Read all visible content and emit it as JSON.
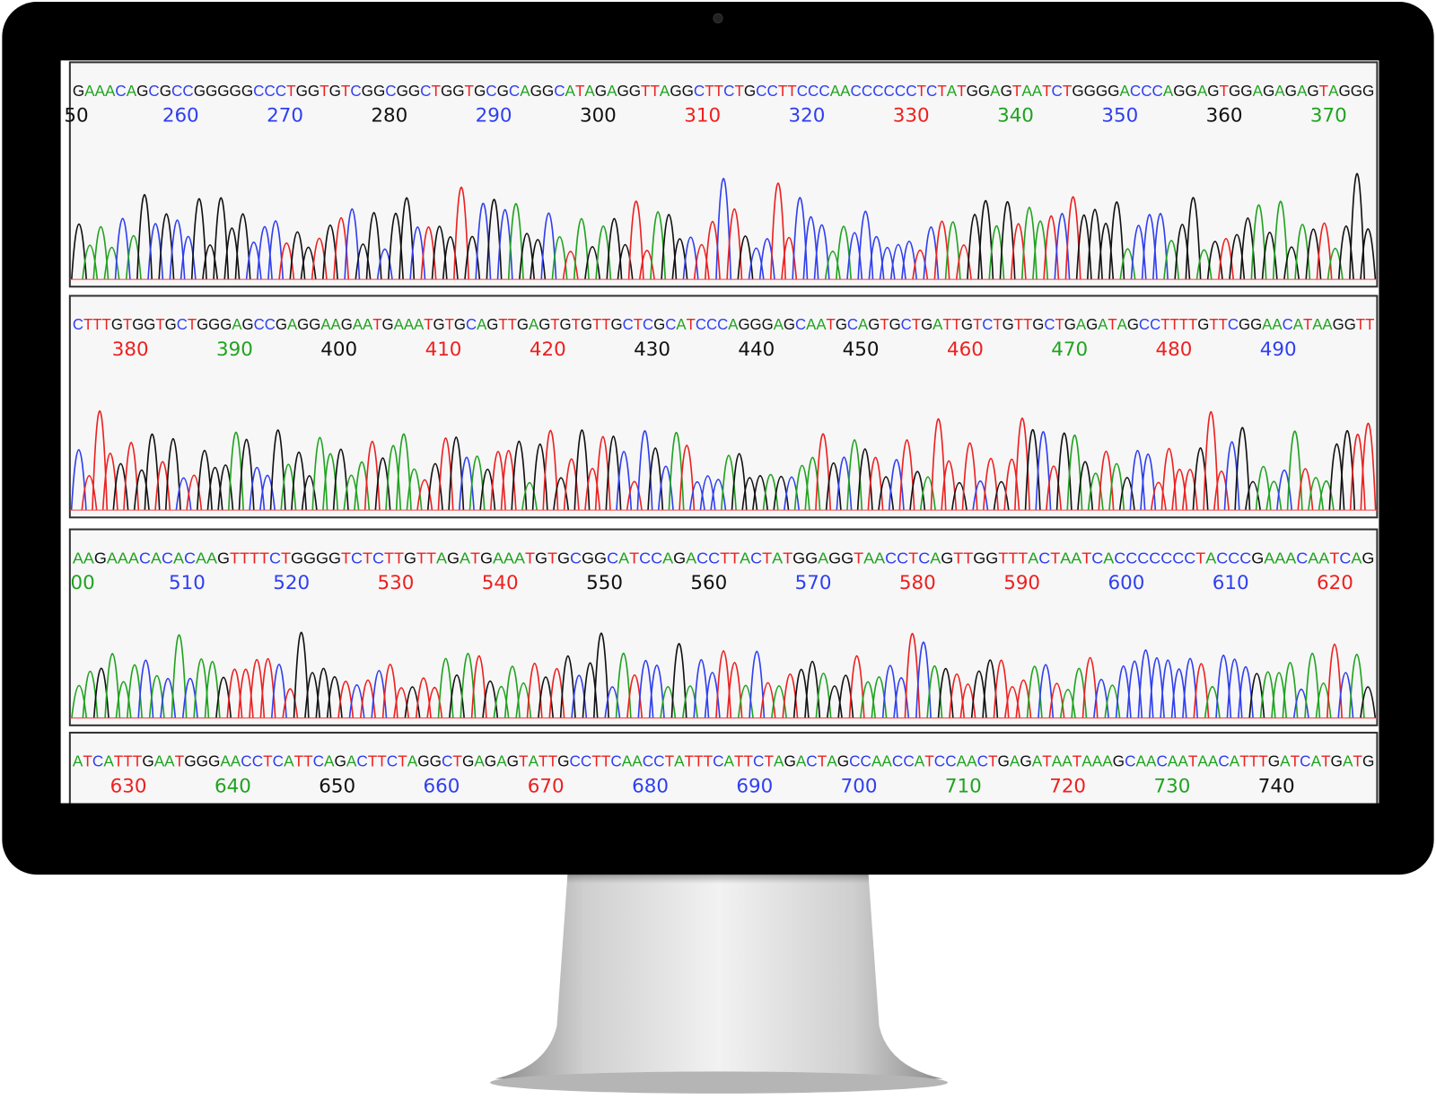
{
  "base_colors": {
    "A": "#1fa31f",
    "C": "#2f3ff0",
    "G": "#111111",
    "T": "#ee2020"
  },
  "panels": [
    {
      "sequence": "GAAACAGCGCCGGGGGCCCTGGTGTCGGCGGCTGGTGCGCAGGCATAGAGGTTAGGCTTCTGCCTTCCCAACCCCCCTCTATGGAGTAATCTGGGGACCCAGGAGTGGAGAGAGTAGGG",
      "positions": [
        "50",
        "260",
        "270",
        "280",
        "290",
        "300",
        "310",
        "320",
        "330",
        "340",
        "350",
        "360",
        "370"
      ],
      "position_colors": [
        "#111111",
        "#2f3ff0",
        "#2f3ff0",
        "#111111",
        "#2f3ff0",
        "#111111",
        "#ee2020",
        "#2f3ff0",
        "#ee2020",
        "#1fa31f",
        "#2f3ff0",
        "#111111",
        "#1fa31f"
      ]
    },
    {
      "sequence": "CTTTGTGGTGCTGGGAGCCGAGGAAGAATGAAATGTGCAGTTGAGTGTGTTGCTCGCATCCCAGGGAGCAATGCAGTGCTGATTGTCTGTTGCTGAGATAGCCTTTTGTTCGGAACATAAGGTT",
      "positions": [
        "380",
        "390",
        "400",
        "410",
        "420",
        "430",
        "440",
        "450",
        "460",
        "470",
        "480",
        "490"
      ],
      "position_colors": [
        "#ee2020",
        "#1fa31f",
        "#111111",
        "#ee2020",
        "#ee2020",
        "#111111",
        "#111111",
        "#111111",
        "#ee2020",
        "#1fa31f",
        "#ee2020",
        "#2f3ff0"
      ]
    },
    {
      "sequence": "AAGAAACACACAAGTTTTCTGGGGTCTCTTGTTAGATGAAATGTGCGGCATCCAGACCTTACTATGGAGGTAACCTCAGTTGGTTTACTAATCACCCCCCCTACCCGAAACAATCAG",
      "positions": [
        "00",
        "510",
        "520",
        "530",
        "540",
        "550",
        "560",
        "570",
        "580",
        "590",
        "600",
        "610",
        "620"
      ],
      "position_colors": [
        "#1fa31f",
        "#2f3ff0",
        "#2f3ff0",
        "#ee2020",
        "#ee2020",
        "#111111",
        "#111111",
        "#2f3ff0",
        "#ee2020",
        "#ee2020",
        "#2f3ff0",
        "#2f3ff0",
        "#ee2020"
      ]
    },
    {
      "sequence": "ATCATTTGAATGGGAACCTCATTCAGACTTCTAGGCTGAGAGTATTGCCTTCAACCTATTTCATTCTAGACTAGCCAACCATCCAACTGAGATAATAAAGCAACAATAACATTTGATCATGATG",
      "positions": [
        "630",
        "640",
        "650",
        "660",
        "670",
        "680",
        "690",
        "700",
        "710",
        "720",
        "730",
        "740"
      ],
      "position_colors": [
        "#ee2020",
        "#1fa31f",
        "#111111",
        "#2f3ff0",
        "#ee2020",
        "#2f3ff0",
        "#2f3ff0",
        "#2f3ff0",
        "#1fa31f",
        "#ee2020",
        "#1fa31f",
        "#111111"
      ]
    }
  ]
}
